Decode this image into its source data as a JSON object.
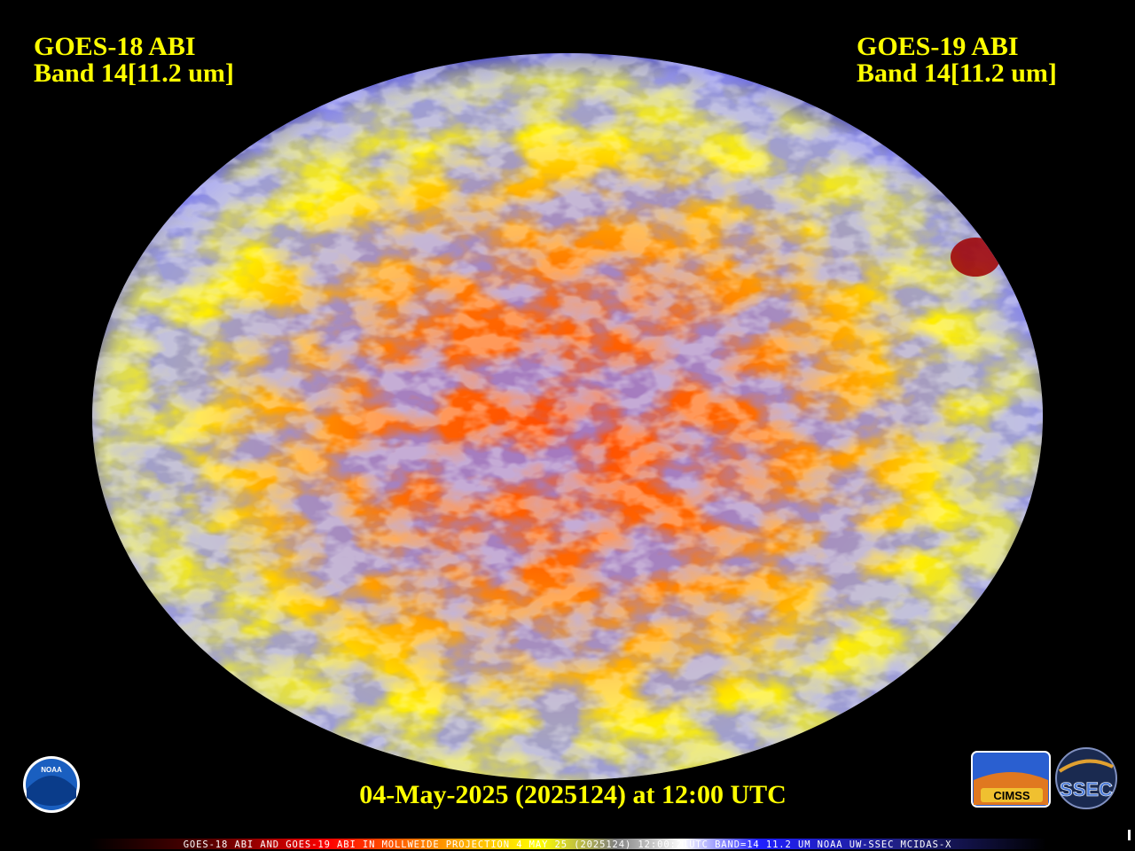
{
  "header": {
    "left": {
      "satellite": "GOES-18 ABI",
      "band": "Band 14[11.2 um]"
    },
    "right": {
      "satellite": "GOES-19 ABI",
      "band": "Band 14[11.2 um]"
    }
  },
  "timestamp": "04-May-2025 (2025124) at 12:00 UTC",
  "footer": "GOES-18 ABI AND GOES-19 ABI IN MOLLWEIDE PROJECTION 4 MAY 25 (2025124) 12:00:21UTC BAND=14 11.2 UM NOAA UW-SSEC MCIDAS-X",
  "logos": {
    "noaa": "NOAA",
    "cimss": "CIMSS",
    "ssec": "SSEC"
  }
}
